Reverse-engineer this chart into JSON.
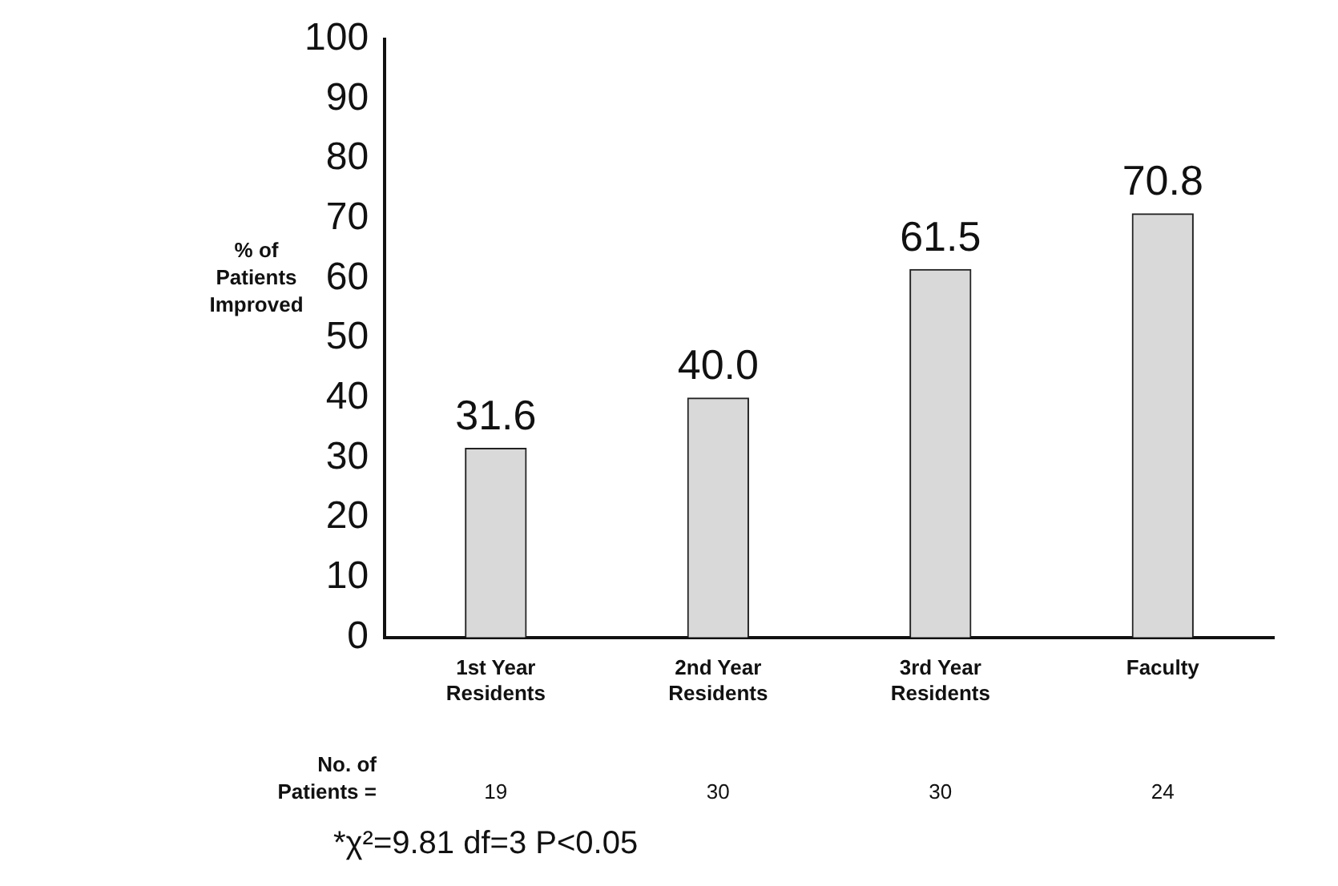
{
  "chart_data": {
    "type": "bar",
    "ylabel": "% of Patients Improved",
    "categories": [
      "1st Year Residents",
      "2nd Year Residents",
      "3rd Year Residents",
      "Faculty"
    ],
    "values": [
      31.6,
      40.0,
      61.5,
      70.8
    ],
    "value_labels": [
      "31.6",
      "40.0",
      "61.5",
      "70.8"
    ],
    "color": "#d9d9d9",
    "ylim": [
      0,
      100
    ],
    "yticks": [
      0,
      10,
      20,
      30,
      40,
      50,
      60,
      70,
      80,
      90,
      100
    ],
    "grid": false,
    "legend": false,
    "annotations": [
      "No. of Patients =",
      "19",
      "30",
      "30",
      "24",
      "*χ²=9.81 df=3 P<0.05"
    ]
  }
}
